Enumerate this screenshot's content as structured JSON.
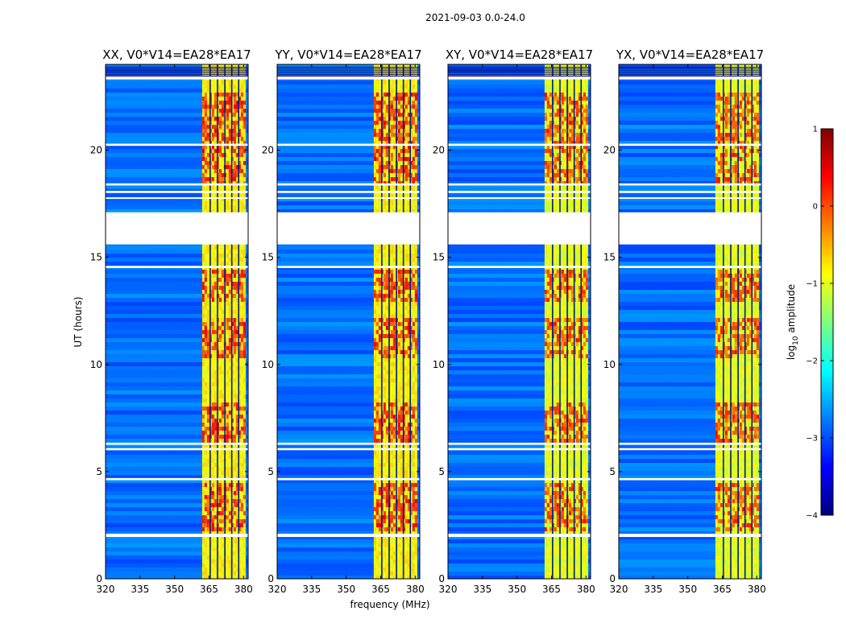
{
  "chart_data": {
    "type": "heatmap",
    "suptitle": "2021-09-03 0.0-24.0",
    "xlabel": "frequency (MHz)",
    "ylabel": "UT (hours)",
    "xlim": [
      320,
      382
    ],
    "ylim": [
      0,
      24
    ],
    "xticks": [
      320,
      335,
      350,
      365,
      380
    ],
    "xtick_labels": [
      "320",
      "335",
      "350",
      "365",
      "380"
    ],
    "yticks": [
      0,
      5,
      10,
      15,
      20
    ],
    "ytick_labels": [
      "0",
      "5",
      "10",
      "15",
      "20"
    ],
    "colorbar": {
      "label": "log10 amplitude",
      "label_prefix": "log",
      "label_sub": "10",
      "label_suffix": " amplitude",
      "range": [
        -4,
        1
      ],
      "ticks": [
        1,
        0,
        -1,
        -2,
        -3,
        -4
      ],
      "tick_labels": [
        "1",
        "0",
        "−1",
        "−2",
        "−3",
        "−4"
      ],
      "colors": [
        "#00007f",
        "#0000ff",
        "#007fff",
        "#00ffff",
        "#7fff7f",
        "#ffff00",
        "#ff7f00",
        "#ff0000",
        "#7f0000"
      ]
    },
    "panels": [
      {
        "title": "XX, V0*V14=EA28*EA17"
      },
      {
        "title": "YY, V0*V14=EA28*EA17"
      },
      {
        "title": "XY, V0*V14=EA28*EA17"
      },
      {
        "title": "YX, V0*V14=EA28*EA17"
      }
    ],
    "strong_band_mhz": [
      362,
      380
    ],
    "band_edge_gaps_mhz": [
      365.2,
      368.4,
      371.6,
      374.6,
      377.6
    ],
    "flagged_blank_ut": [
      [
        15.6,
        17.1
      ],
      [
        1.95,
        2.1
      ],
      [
        4.6,
        4.7
      ],
      [
        6.0,
        6.1
      ],
      [
        6.25,
        6.35
      ],
      [
        14.5,
        14.6
      ],
      [
        17.75,
        17.8
      ],
      [
        18.0,
        18.1
      ],
      [
        18.35,
        18.45
      ],
      [
        20.2,
        20.3
      ],
      [
        23.3,
        23.45
      ]
    ],
    "strong_activity_ut": [
      [
        2.3,
        4.6
      ],
      [
        6.4,
        8.4
      ],
      [
        10.3,
        12.3
      ],
      [
        13.0,
        14.5
      ],
      [
        18.5,
        22.8
      ]
    ]
  }
}
